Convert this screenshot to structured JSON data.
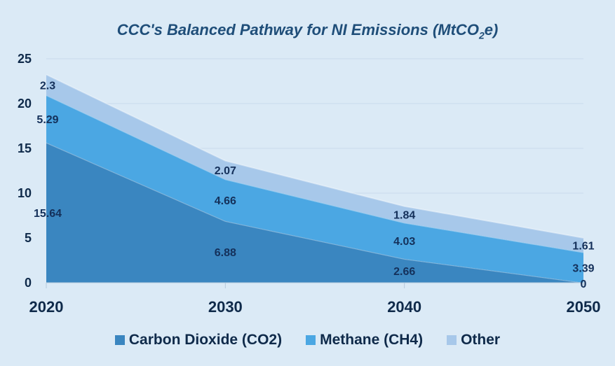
{
  "chart_data": {
    "type": "area",
    "stacked": true,
    "title_main": "CCC's Balanced Pathway for NI Emissions (MtCO",
    "title_sub": "2",
    "title_end": "e)",
    "x": [
      "2020",
      "2030",
      "2040",
      "2050"
    ],
    "ylim": [
      0,
      25
    ],
    "yticks": [
      "0",
      "5",
      "10",
      "15",
      "20",
      "25"
    ],
    "grid": true,
    "legend_position": "bottom",
    "series": [
      {
        "name": "Carbon Dioxide (CO2)",
        "values": [
          15.64,
          6.88,
          2.66,
          0
        ],
        "labels": [
          "15.64",
          "6.88",
          "2.66",
          "0"
        ],
        "color": "#3a86c0"
      },
      {
        "name": "Methane (CH4)",
        "values": [
          5.29,
          4.66,
          4.03,
          3.39
        ],
        "labels": [
          "5.29",
          "4.66",
          "4.03",
          "3.39"
        ],
        "color": "#4ba7e3"
      },
      {
        "name": "Other",
        "values": [
          2.3,
          2.07,
          1.84,
          1.61
        ],
        "labels": [
          "2.3",
          "2.07",
          "1.84",
          "1.61"
        ],
        "color": "#a7c8ea"
      }
    ]
  }
}
